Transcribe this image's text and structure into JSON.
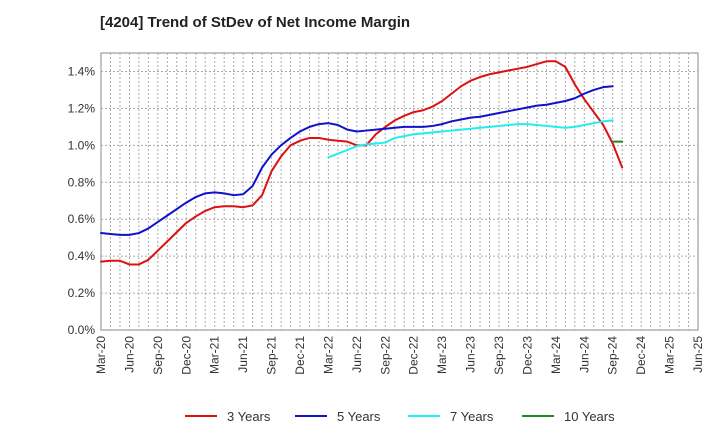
{
  "chart_data": {
    "type": "line",
    "title": "[4204]  Trend of StDev of Net Income Margin",
    "xlabel": "",
    "ylabel": "",
    "ylim": [
      0,
      1.5
    ],
    "y_ticks": [
      "0.0%",
      "0.2%",
      "0.4%",
      "0.6%",
      "0.8%",
      "1.0%",
      "1.2%",
      "1.4%"
    ],
    "x_ticks": [
      "Mar-20",
      "Jun-20",
      "Sep-20",
      "Dec-20",
      "Mar-21",
      "Jun-21",
      "Sep-21",
      "Dec-21",
      "Mar-22",
      "Jun-22",
      "Sep-22",
      "Dec-22",
      "Mar-23",
      "Jun-23",
      "Sep-23",
      "Dec-23",
      "Mar-24",
      "Jun-24",
      "Sep-24",
      "Dec-24",
      "Mar-25",
      "Jun-25"
    ],
    "grid": true,
    "legend_position": "bottom",
    "series": [
      {
        "name": "3 Years",
        "color": "#dd1111",
        "start_index": 0,
        "values": [
          0.37,
          0.375,
          0.375,
          0.355,
          0.355,
          0.38,
          0.43,
          0.48,
          0.53,
          0.58,
          0.615,
          0.645,
          0.665,
          0.67,
          0.67,
          0.665,
          0.675,
          0.73,
          0.86,
          0.94,
          1.0,
          1.025,
          1.04,
          1.04,
          1.03,
          1.025,
          1.02,
          1.0,
          1.0,
          1.06,
          1.1,
          1.135,
          1.16,
          1.18,
          1.19,
          1.21,
          1.24,
          1.28,
          1.32,
          1.35,
          1.37,
          1.385,
          1.395,
          1.405,
          1.415,
          1.425,
          1.44,
          1.455,
          1.455,
          1.425,
          1.33,
          1.25,
          1.18,
          1.11,
          1.01,
          0.88
        ]
      },
      {
        "name": "5 Years",
        "color": "#1111cc",
        "start_index": 0,
        "values": [
          0.525,
          0.52,
          0.515,
          0.515,
          0.525,
          0.55,
          0.585,
          0.62,
          0.655,
          0.69,
          0.72,
          0.74,
          0.745,
          0.74,
          0.73,
          0.735,
          0.78,
          0.88,
          0.95,
          1.0,
          1.04,
          1.075,
          1.1,
          1.115,
          1.12,
          1.11,
          1.085,
          1.075,
          1.08,
          1.085,
          1.09,
          1.095,
          1.1,
          1.1,
          1.1,
          1.105,
          1.115,
          1.13,
          1.14,
          1.15,
          1.155,
          1.165,
          1.175,
          1.185,
          1.195,
          1.205,
          1.215,
          1.22,
          1.23,
          1.24,
          1.255,
          1.28,
          1.3,
          1.315,
          1.32
        ]
      },
      {
        "name": "7 Years",
        "color": "#22eeee",
        "start_index": 24,
        "values": [
          0.935,
          0.955,
          0.975,
          0.995,
          1.005,
          1.01,
          1.015,
          1.04,
          1.05,
          1.06,
          1.065,
          1.07,
          1.075,
          1.08,
          1.085,
          1.09,
          1.095,
          1.1,
          1.105,
          1.11,
          1.115,
          1.115,
          1.11,
          1.105,
          1.1,
          1.095,
          1.1,
          1.11,
          1.12,
          1.13,
          1.135
        ]
      },
      {
        "name": "10 Years",
        "color": "#228822",
        "start_index": 54,
        "values": [
          1.02,
          1.02
        ]
      }
    ]
  }
}
